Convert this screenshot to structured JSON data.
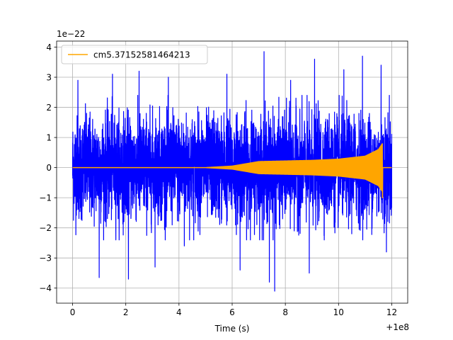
{
  "chart_data": {
    "type": "line",
    "title": "",
    "xlabel": "Time (s)",
    "ylabel": "",
    "x_offset_label": "+1e8",
    "y_scale_label": "1e−22",
    "xlim": [
      -0.6,
      12.6
    ],
    "ylim": [
      -4.5,
      4.2
    ],
    "x_ticks": [
      0,
      2,
      4,
      6,
      8,
      10,
      12
    ],
    "x_tick_labels": [
      "0",
      "2",
      "4",
      "6",
      "8",
      "10",
      "12"
    ],
    "y_ticks": [
      -4,
      -3,
      -2,
      -1,
      0,
      1,
      2,
      3,
      4
    ],
    "y_tick_labels": [
      "−4",
      "−3",
      "−2",
      "−1",
      "0",
      "1",
      "2",
      "3",
      "4"
    ],
    "grid": true,
    "legend_position": "top-left",
    "series": [
      {
        "color": "#0000ff",
        "description": "noise data",
        "x_range": [
          0,
          12
        ],
        "typical_amplitude": 1.8,
        "peaks": [
          {
            "x": 0.2,
            "y": 2.9
          },
          {
            "x": 1.0,
            "y": -3.65
          },
          {
            "x": 1.5,
            "y": 3.1
          },
          {
            "x": 2.1,
            "y": -3.7
          },
          {
            "x": 2.5,
            "y": 3.2
          },
          {
            "x": 3.1,
            "y": -3.3
          },
          {
            "x": 3.6,
            "y": 3.0
          },
          {
            "x": 4.2,
            "y": -2.6
          },
          {
            "x": 5.8,
            "y": 3.1
          },
          {
            "x": 6.3,
            "y": -3.4
          },
          {
            "x": 7.2,
            "y": 3.85
          },
          {
            "x": 7.4,
            "y": -3.8
          },
          {
            "x": 7.6,
            "y": -4.1
          },
          {
            "x": 8.2,
            "y": 2.9
          },
          {
            "x": 8.9,
            "y": -3.5
          },
          {
            "x": 9.1,
            "y": 3.6
          },
          {
            "x": 10.2,
            "y": 3.25
          },
          {
            "x": 10.9,
            "y": 3.7
          },
          {
            "x": 11.6,
            "y": 3.4
          },
          {
            "x": 11.8,
            "y": -2.8
          }
        ]
      },
      {
        "name": "cm5.37152581464213",
        "color": "#ffa500",
        "description": "chirp waveform",
        "x_range": [
          0,
          12
        ],
        "envelope": [
          {
            "x": 5.0,
            "y": 0.0
          },
          {
            "x": 6.0,
            "y": 0.05
          },
          {
            "x": 7.0,
            "y": 0.2
          },
          {
            "x": 8.0,
            "y": 0.22
          },
          {
            "x": 9.0,
            "y": 0.24
          },
          {
            "x": 10.0,
            "y": 0.28
          },
          {
            "x": 11.0,
            "y": 0.38
          },
          {
            "x": 11.5,
            "y": 0.6
          },
          {
            "x": 11.65,
            "y": 0.8
          }
        ],
        "merger_min": {
          "x": 11.65,
          "y": -1.0
        },
        "merger_time": 11.7
      }
    ]
  }
}
